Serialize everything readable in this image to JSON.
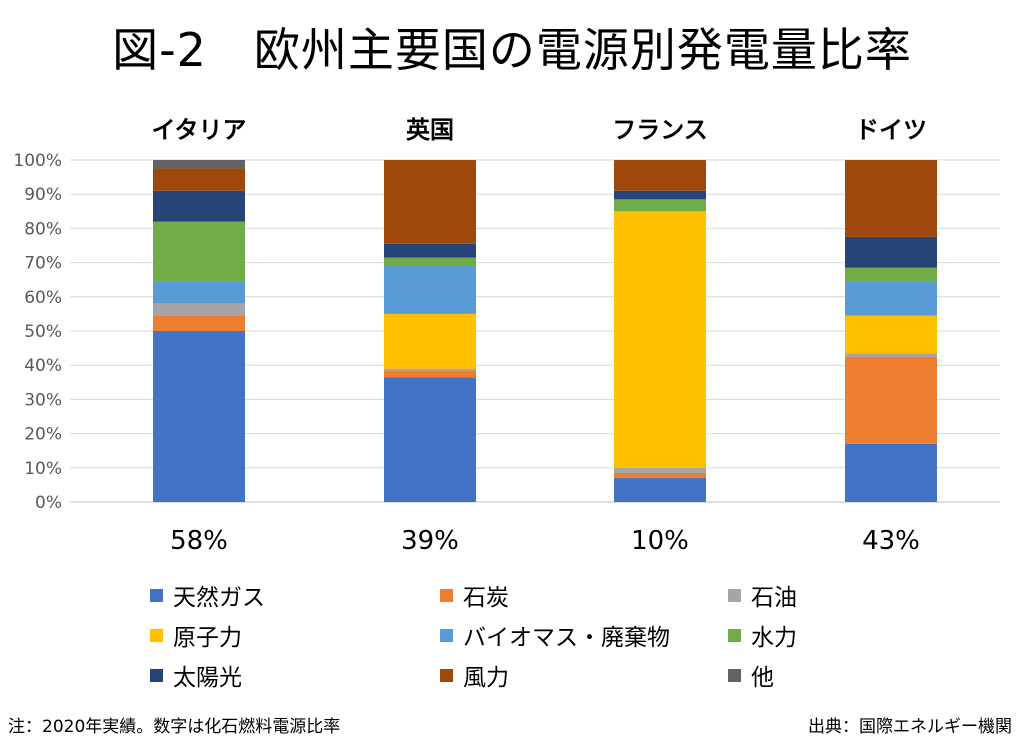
{
  "title": "図-2　欧州主要国の電源別発電量比率",
  "note": "注：2020年実績。数字は化石燃料電源比率",
  "source": "出典：国際エネルギー機関",
  "chart_data": {
    "type": "bar",
    "stacked": true,
    "categories": [
      "イタリア",
      "英国",
      "フランス",
      "ドイツ"
    ],
    "category_values": [
      "58%",
      "39%",
      "10%",
      "43%"
    ],
    "y_ticks": [
      "0%",
      "10%",
      "20%",
      "30%",
      "40%",
      "50%",
      "60%",
      "70%",
      "80%",
      "90%",
      "100%"
    ],
    "ylim": [
      0,
      100
    ],
    "grid": true,
    "legend_position": "bottom",
    "series": [
      {
        "name": "天然ガス",
        "color": "#4472C4",
        "values": [
          50,
          36.5,
          7,
          17
        ]
      },
      {
        "name": "石炭",
        "color": "#ED7D31",
        "values": [
          4.5,
          2,
          1.5,
          25.5
        ]
      },
      {
        "name": "石油",
        "color": "#A5A5A5",
        "values": [
          3.5,
          0.5,
          1.5,
          1
        ]
      },
      {
        "name": "原子力",
        "color": "#FFC000",
        "values": [
          0,
          16,
          75,
          11
        ]
      },
      {
        "name": "バイオマス・廃棄物",
        "color": "#5B9BD5",
        "values": [
          6.5,
          14,
          0,
          10
        ]
      },
      {
        "name": "水力",
        "color": "#70AD47",
        "values": [
          17.5,
          2.5,
          3.5,
          4
        ]
      },
      {
        "name": "太陽光",
        "color": "#264478",
        "values": [
          9,
          4,
          2.5,
          9
        ]
      },
      {
        "name": "風力",
        "color": "#9E480E",
        "values": [
          6.5,
          24.5,
          9,
          22.5
        ]
      },
      {
        "name": "他",
        "color": "#636363",
        "values": [
          2.5,
          0,
          0,
          0
        ]
      }
    ]
  }
}
